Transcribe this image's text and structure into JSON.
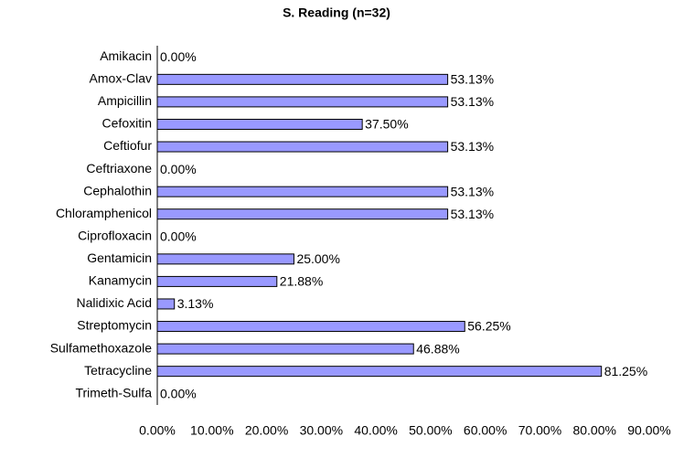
{
  "chart_data": {
    "type": "bar",
    "orientation": "horizontal",
    "title": "S. Reading (n=32)",
    "categories": [
      "Amikacin",
      "Amox-Clav",
      "Ampicillin",
      "Cefoxitin",
      "Ceftiofur",
      "Ceftriaxone",
      "Cephalothin",
      "Chloramphenicol",
      "Ciprofloxacin",
      "Gentamicin",
      "Kanamycin",
      "Nalidixic Acid",
      "Streptomycin",
      "Sulfamethoxazole",
      "Tetracycline",
      "Trimeth-Sulfa"
    ],
    "values": [
      0,
      53.13,
      53.13,
      37.5,
      53.13,
      0,
      53.13,
      53.13,
      0,
      25,
      21.88,
      3.13,
      56.25,
      46.88,
      81.25,
      0
    ],
    "value_labels": [
      "0.00%",
      "53.13%",
      "53.13%",
      "37.50%",
      "53.13%",
      "0.00%",
      "53.13%",
      "53.13%",
      "0.00%",
      "25.00%",
      "21.88%",
      "3.13%",
      "56.25%",
      "46.88%",
      "81.25%",
      "0.00%"
    ],
    "color": "#9999ff",
    "xlim": [
      0,
      90
    ],
    "xticks": [
      {
        "value": 0,
        "label": "0.00%"
      },
      {
        "value": 10,
        "label": "10.00%"
      },
      {
        "value": 20,
        "label": "20.00%"
      },
      {
        "value": 30,
        "label": "30.00%"
      },
      {
        "value": 40,
        "label": "40.00%"
      },
      {
        "value": 50,
        "label": "50.00%"
      },
      {
        "value": 60,
        "label": "60.00%"
      },
      {
        "value": 70,
        "label": "70.00%"
      },
      {
        "value": 80,
        "label": "80.00%"
      },
      {
        "value": 90,
        "label": "90.00%"
      }
    ]
  }
}
